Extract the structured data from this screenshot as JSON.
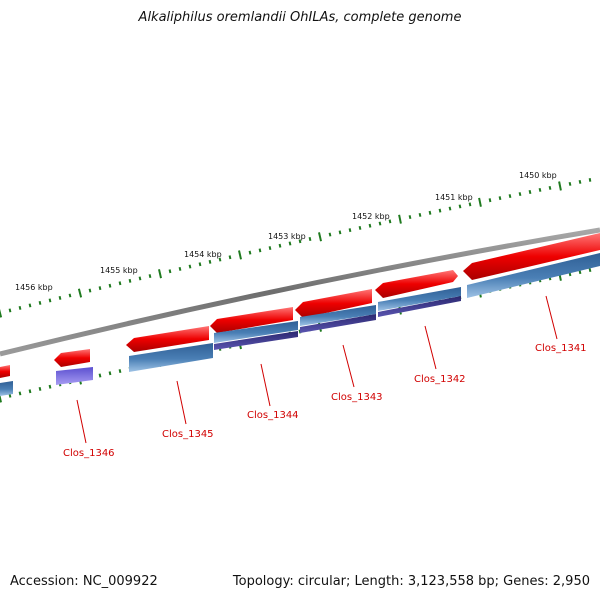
{
  "title": "Alkaliphilus oremlandii OhILAs, complete genome",
  "footer": {
    "accession": "Accession: NC_009922",
    "topology": "Topology: circular; Length: 3,123,558 bp; Genes: 2,950"
  },
  "ticks": [
    {
      "label": "1450 kbp"
    },
    {
      "label": "1451 kbp"
    },
    {
      "label": "1452 kbp"
    },
    {
      "label": "1453 kbp"
    },
    {
      "label": "1454 kbp"
    },
    {
      "label": "1455 kbp"
    },
    {
      "label": "1456 kbp"
    }
  ],
  "genes": [
    {
      "label": "Clos_1341"
    },
    {
      "label": "Clos_1342"
    },
    {
      "label": "Clos_1343"
    },
    {
      "label": "Clos_1344"
    },
    {
      "label": "Clos_1345"
    },
    {
      "label": "Clos_1346"
    }
  ],
  "colors": {
    "cds_forward": "#e60000",
    "cds_reverse": "#4a7fb5",
    "feature": "#3c3a8a",
    "feature_small": "#7b6ce0",
    "backbone": "#7f7f7f",
    "ticks": "#1f7a1f",
    "gene_label": "#d10000"
  }
}
